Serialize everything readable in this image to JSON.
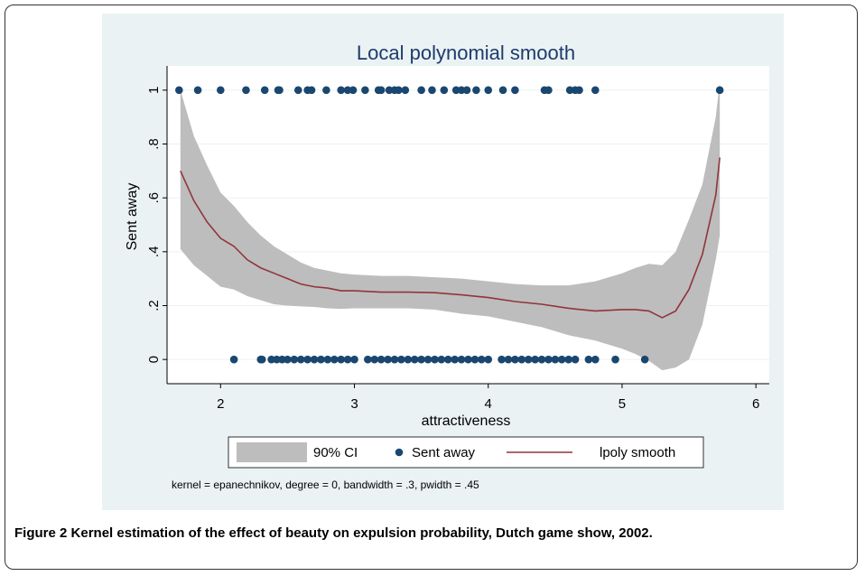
{
  "chart_data": {
    "type": "scatter",
    "title": "Local polynomial smooth",
    "x_label": "attractiveness",
    "y_label": "Sent away",
    "note": "kernel = epanechnikov, degree = 0, bandwidth = .3, pwidth = .45",
    "xlim": [
      1.6,
      6.1
    ],
    "xticks": [
      2,
      3,
      4,
      5,
      6
    ],
    "ylim": [
      -0.09,
      1.09
    ],
    "yticks": [
      0,
      {
        "value": 0.2,
        "label": ".2"
      },
      {
        "value": 0.4,
        "label": ".4"
      },
      {
        "value": 0.6,
        "label": ".6"
      },
      {
        "value": 0.8,
        "label": ".8"
      },
      1
    ],
    "grid": true,
    "series": [
      {
        "name": "90% CI",
        "type": "band",
        "color": "#bdbdbd",
        "x": [
          1.7,
          1.8,
          1.9,
          2.0,
          2.1,
          2.2,
          2.3,
          2.4,
          2.5,
          2.6,
          2.7,
          2.8,
          2.9,
          3.0,
          3.2,
          3.4,
          3.6,
          3.8,
          4.0,
          4.2,
          4.4,
          4.6,
          4.8,
          5.0,
          5.1,
          5.2,
          5.3,
          5.4,
          5.5,
          5.6,
          5.7,
          5.73
        ],
        "upper": [
          1.0,
          0.83,
          0.72,
          0.62,
          0.57,
          0.51,
          0.46,
          0.42,
          0.39,
          0.36,
          0.34,
          0.33,
          0.32,
          0.315,
          0.31,
          0.31,
          0.305,
          0.3,
          0.29,
          0.28,
          0.275,
          0.275,
          0.29,
          0.32,
          0.34,
          0.355,
          0.35,
          0.4,
          0.52,
          0.65,
          0.9,
          1.03
        ],
        "lower": [
          0.41,
          0.35,
          0.31,
          0.27,
          0.26,
          0.235,
          0.22,
          0.205,
          0.2,
          0.197,
          0.195,
          0.19,
          0.188,
          0.19,
          0.19,
          0.19,
          0.185,
          0.17,
          0.16,
          0.14,
          0.12,
          0.09,
          0.07,
          0.04,
          0.02,
          -0.005,
          -0.04,
          -0.03,
          0.0,
          0.13,
          0.37,
          0.46
        ]
      },
      {
        "name": "Sent away",
        "type": "scatter",
        "color": "#1a476f",
        "x": [
          1.69,
          1.83,
          2.0,
          2.19,
          2.33,
          2.43,
          2.44,
          2.58,
          2.65,
          2.68,
          2.79,
          2.9,
          2.95,
          2.99,
          3.08,
          3.18,
          3.2,
          3.26,
          3.3,
          3.33,
          3.38,
          3.5,
          3.58,
          3.67,
          3.76,
          3.8,
          3.84,
          3.91,
          4.0,
          4.11,
          4.2,
          4.42,
          4.45,
          4.61,
          4.65,
          4.68,
          4.8,
          5.73,
          2.1,
          2.3,
          2.31,
          2.38,
          2.42,
          2.46,
          2.5,
          2.55,
          2.6,
          2.65,
          2.7,
          2.75,
          2.8,
          2.85,
          2.9,
          2.95,
          3.0,
          3.1,
          3.15,
          3.2,
          3.25,
          3.3,
          3.35,
          3.4,
          3.45,
          3.5,
          3.55,
          3.6,
          3.65,
          3.7,
          3.75,
          3.8,
          3.85,
          3.9,
          3.95,
          4.0,
          4.1,
          4.15,
          4.2,
          4.25,
          4.3,
          4.35,
          4.4,
          4.45,
          4.5,
          4.55,
          4.6,
          4.65,
          4.75,
          4.8,
          4.95,
          5.17
        ],
        "values": [
          1,
          1,
          1,
          1,
          1,
          1,
          1,
          1,
          1,
          1,
          1,
          1,
          1,
          1,
          1,
          1,
          1,
          1,
          1,
          1,
          1,
          1,
          1,
          1,
          1,
          1,
          1,
          1,
          1,
          1,
          1,
          1,
          1,
          1,
          1,
          1,
          1,
          1,
          0,
          0,
          0,
          0,
          0,
          0,
          0,
          0,
          0,
          0,
          0,
          0,
          0,
          0,
          0,
          0,
          0,
          0,
          0,
          0,
          0,
          0,
          0,
          0,
          0,
          0,
          0,
          0,
          0,
          0,
          0,
          0,
          0,
          0,
          0,
          0,
          0,
          0,
          0,
          0,
          0,
          0,
          0,
          0,
          0,
          0,
          0,
          0,
          0,
          0,
          0,
          0
        ]
      },
      {
        "name": "lpoly smooth",
        "type": "line",
        "color": "#90353b",
        "x": [
          1.7,
          1.8,
          1.9,
          2.0,
          2.1,
          2.2,
          2.3,
          2.4,
          2.5,
          2.6,
          2.7,
          2.8,
          2.9,
          3.0,
          3.2,
          3.4,
          3.6,
          3.8,
          4.0,
          4.2,
          4.4,
          4.6,
          4.8,
          5.0,
          5.1,
          5.2,
          5.3,
          5.4,
          5.5,
          5.6,
          5.7,
          5.73
        ],
        "values": [
          0.7,
          0.59,
          0.51,
          0.45,
          0.42,
          0.37,
          0.34,
          0.32,
          0.3,
          0.28,
          0.27,
          0.265,
          0.255,
          0.255,
          0.25,
          0.25,
          0.248,
          0.24,
          0.23,
          0.215,
          0.205,
          0.19,
          0.18,
          0.185,
          0.185,
          0.18,
          0.155,
          0.18,
          0.26,
          0.39,
          0.61,
          0.75
        ]
      }
    ]
  },
  "caption": {
    "label": "Figure 2",
    "text": "Kernel estimation of the effect of beauty on expulsion probability, Dutch game show, 2002."
  }
}
